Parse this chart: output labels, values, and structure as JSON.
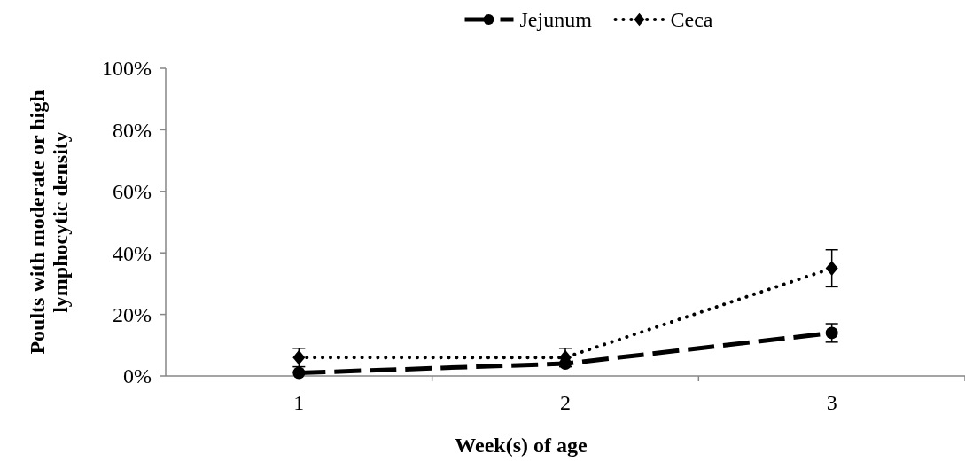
{
  "chart_data": {
    "type": "line",
    "xlabel": "Week(s) of age",
    "ylabel": "Poults with moderate or high lymphocytic density",
    "categories": [
      "1",
      "2",
      "3"
    ],
    "series": [
      {
        "name": "Jejunum",
        "color": "#000000",
        "values": [
          1,
          4,
          14
        ],
        "errors": [
          null,
          null,
          3
        ],
        "marker": "circle",
        "line_style": "dashed"
      },
      {
        "name": "Ceca",
        "color": "#000000",
        "values": [
          6,
          6,
          35
        ],
        "errors": [
          3,
          3,
          6
        ],
        "marker": "diamond",
        "line_style": "dotted"
      }
    ],
    "ylim": [
      0,
      100
    ],
    "yticks": [
      {
        "value": 0,
        "label": "0%"
      },
      {
        "value": 20,
        "label": "20%"
      },
      {
        "value": 40,
        "label": "40%"
      },
      {
        "value": 60,
        "label": "60%"
      },
      {
        "value": 80,
        "label": "80%"
      },
      {
        "value": 100,
        "label": "100%"
      }
    ],
    "grid": false,
    "legend": "top"
  }
}
